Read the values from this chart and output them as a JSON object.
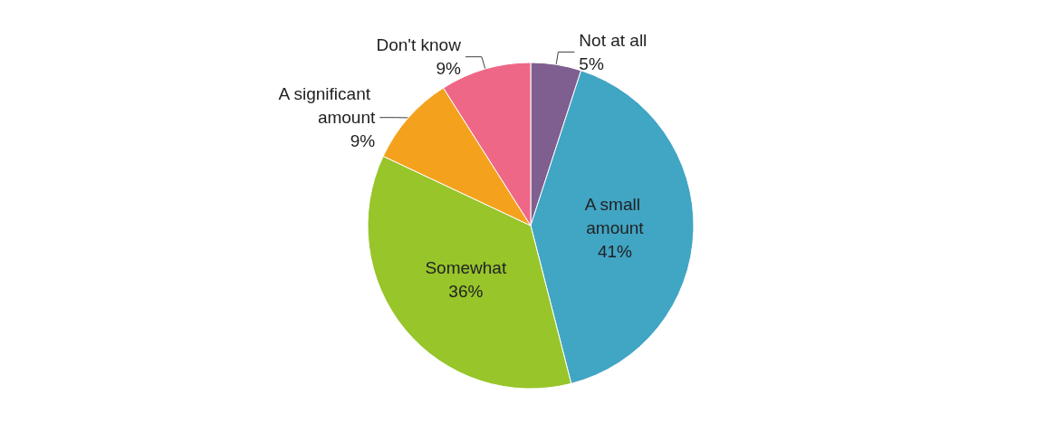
{
  "chart_data": {
    "type": "pie",
    "categories": [
      "Not at all",
      "A small amount",
      "Somewhat",
      "A significant amount",
      "Don't know"
    ],
    "values": [
      5,
      41,
      36,
      9,
      9
    ],
    "colors": [
      "#7f5f8f",
      "#41a5c4",
      "#97c52a",
      "#f4a21d",
      "#ef6787"
    ],
    "value_labels": [
      "5%",
      "41%",
      "36%",
      "9%",
      "9%"
    ],
    "legend": false
  }
}
